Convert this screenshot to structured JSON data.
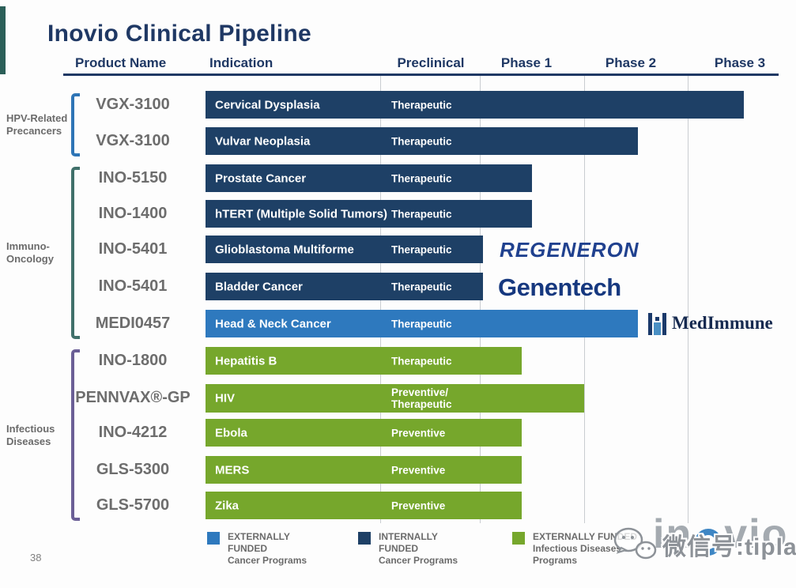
{
  "slide": {
    "title": "Inovio Clinical Pipeline",
    "page_number": "38",
    "wordmark": {
      "left": "in",
      "right": "vio"
    },
    "watermark_text": "微信号:tiplab"
  },
  "table": {
    "columns": [
      "Product Name",
      "Indication",
      "Preclinical",
      "Phase 1",
      "Phase 2",
      "Phase 3"
    ]
  },
  "colors": {
    "navy": "#1e4066",
    "blue": "#2e79be",
    "green": "#76a72c",
    "header": "#1f3864",
    "gray_text": "#6b6b6b"
  },
  "chart_data": {
    "type": "bar",
    "subtype": "clinical-pipeline-gantt",
    "title": "Inovio Clinical Pipeline",
    "phases": [
      "Preclinical",
      "Phase 1",
      "Phase 2",
      "Phase 3"
    ],
    "progress_scale_note": "0=start Preclinical, 1=end Preclinical, 2=end Phase 1, 3=end Phase 2, 4=end Phase 3",
    "groups": [
      {
        "label_lines": [
          "HPV-Related",
          "Precancers"
        ],
        "first_row": 0,
        "last_row": 1,
        "bracket_color": "#2e75b6"
      },
      {
        "label_lines": [
          "Immuno-",
          "Oncology"
        ],
        "first_row": 2,
        "last_row": 6,
        "bracket_color": "#40706a"
      },
      {
        "label_lines": [
          "Infectious",
          "Diseases"
        ],
        "first_row": 7,
        "last_row": 11,
        "bracket_color": "#6b5f96"
      }
    ],
    "rows": [
      {
        "product": "VGX-3100",
        "indication": "Cervical Dysplasia",
        "label": "Therapeutic",
        "progress": 3.62,
        "color": "navy"
      },
      {
        "product": "VGX-3100",
        "indication": "Vulvar Neoplasia",
        "label": "Therapeutic",
        "progress": 2.52,
        "color": "navy"
      },
      {
        "product": "INO-5150",
        "indication": "Prostate Cancer",
        "label": "Therapeutic",
        "progress": 1.5,
        "color": "navy"
      },
      {
        "product": "INO-1400",
        "indication": "hTERT (Multiple Solid Tumors)",
        "label": "Therapeutic",
        "progress": 1.5,
        "color": "navy"
      },
      {
        "product": "INO-5401",
        "indication": "Glioblastoma Multiforme",
        "label": "Therapeutic",
        "progress": 1.03,
        "color": "navy",
        "partner": "REGENERON"
      },
      {
        "product": "INO-5401",
        "indication": "Bladder Cancer",
        "label": "Therapeutic",
        "progress": 1.03,
        "color": "navy",
        "partner": "Genentech"
      },
      {
        "product": "MEDI0457",
        "indication": "Head & Neck Cancer",
        "label": "Therapeutic",
        "progress": 2.52,
        "color": "blue",
        "partner": "MedImmune"
      },
      {
        "product": "INO-1800",
        "indication": "Hepatitis B",
        "label": "Therapeutic",
        "progress": 1.4,
        "color": "green"
      },
      {
        "product": "PENNVAX®-GP",
        "indication": "HIV",
        "label": "Preventive/\nTherapeutic",
        "progress": 2.0,
        "color": "green"
      },
      {
        "product": "INO-4212",
        "indication": "Ebola",
        "label": "Preventive",
        "progress": 1.4,
        "color": "green"
      },
      {
        "product": "GLS-5300",
        "indication": "MERS",
        "label": "Preventive",
        "progress": 1.4,
        "color": "green"
      },
      {
        "product": "GLS-5700",
        "indication": "Zika",
        "label": "Preventive",
        "progress": 1.4,
        "color": "green"
      }
    ],
    "legend": [
      {
        "swatch": "#2e79be",
        "lines": [
          "EXTERNALLY",
          "FUNDED",
          "Cancer Programs"
        ]
      },
      {
        "swatch": "#1e4066",
        "lines": [
          "INTERNALLY",
          "FUNDED",
          "Cancer Programs"
        ]
      },
      {
        "swatch": "#76a72c",
        "lines": [
          "EXTERNALLY FUNDED",
          "Infectious Diseases",
          "Programs"
        ]
      }
    ],
    "legend_position": "bottom"
  }
}
